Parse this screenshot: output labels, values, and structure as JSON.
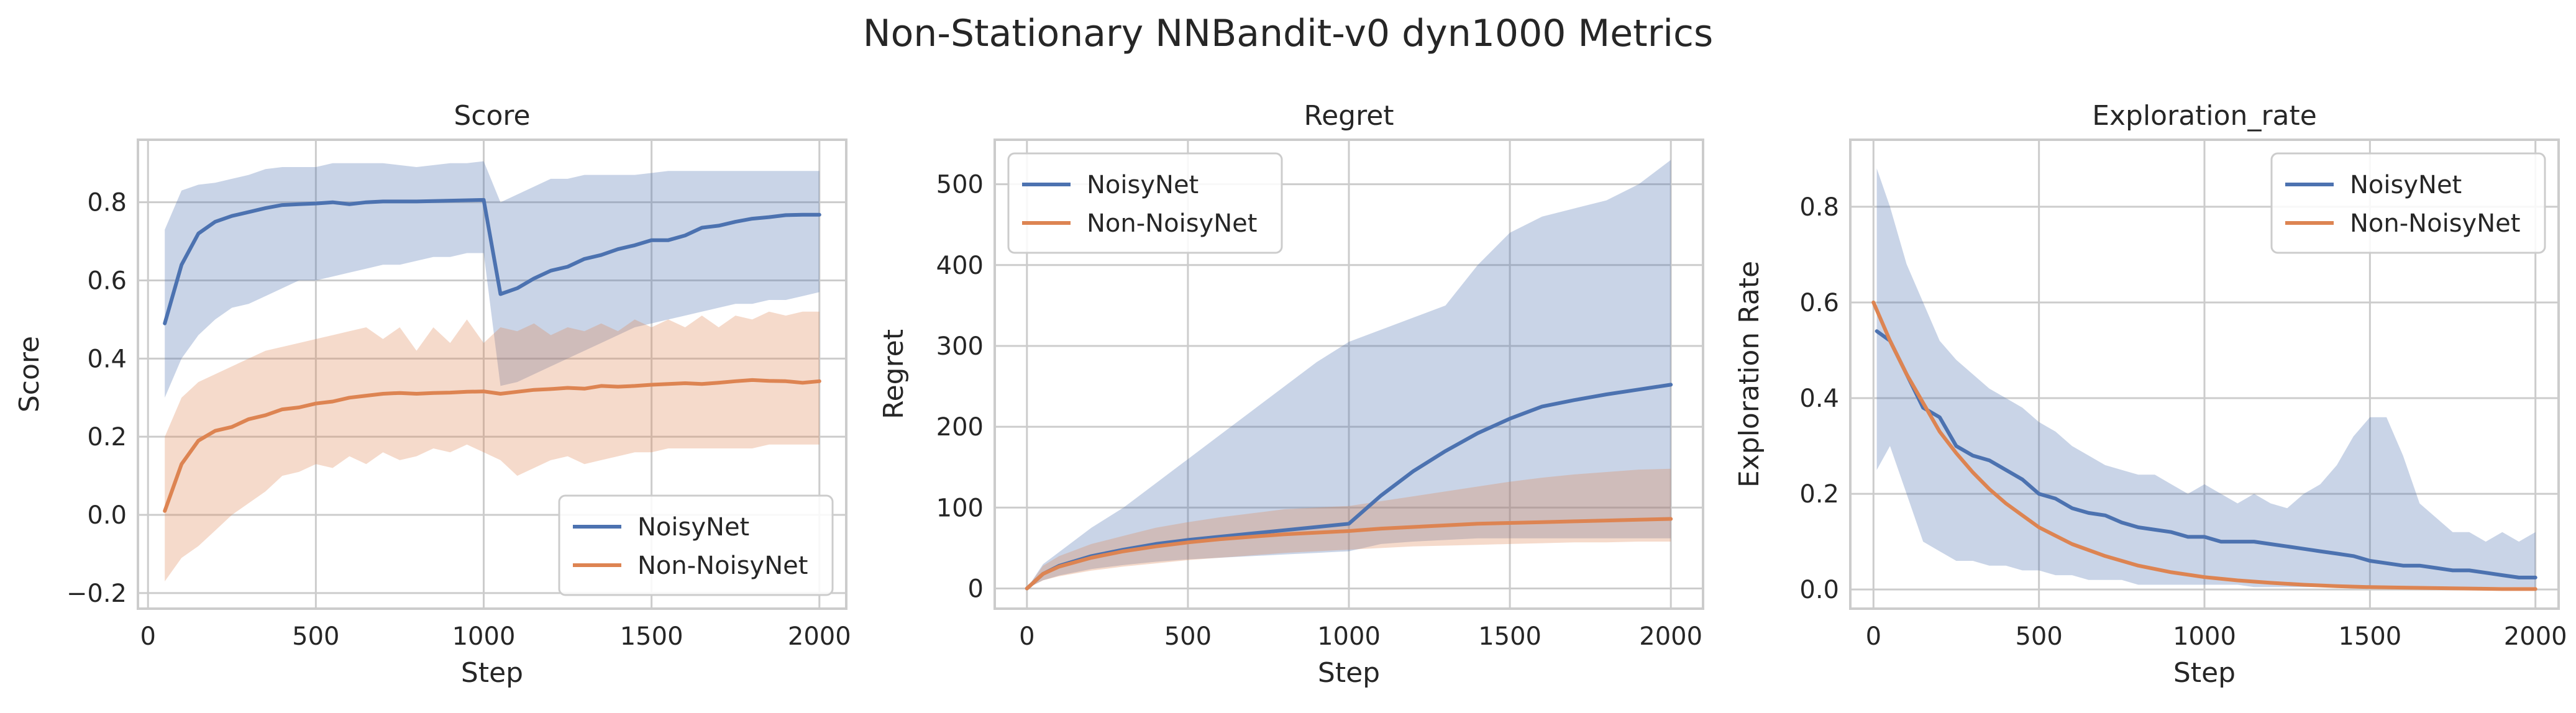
{
  "figure": {
    "suptitle": "Non-Stationary NNBandit-v0 dyn1000 Metrics"
  },
  "colors": {
    "noisy": "#4c72b0",
    "nonnoisy": "#dd8452",
    "grid": "#cccccc",
    "frame": "#cccccc",
    "text": "#262626"
  },
  "chart_data": [
    {
      "type": "line",
      "title": "Score",
      "xlabel": "Step",
      "ylabel": "Score",
      "xlim": [
        -30,
        2080
      ],
      "ylim": [
        -0.24,
        0.96
      ],
      "xticks": [
        0,
        500,
        1000,
        1500,
        2000
      ],
      "yticks": [
        -0.2,
        0.0,
        0.2,
        0.4,
        0.6,
        0.8
      ],
      "ytick_labels": [
        "−0.2",
        "0.0",
        "0.2",
        "0.4",
        "0.6",
        "0.8"
      ],
      "grid": true,
      "legend": "lower right",
      "series": [
        {
          "name": "NoisyNet",
          "x": [
            50,
            100,
            150,
            200,
            250,
            300,
            350,
            400,
            450,
            500,
            550,
            600,
            650,
            700,
            750,
            800,
            850,
            900,
            950,
            1000,
            1050,
            1100,
            1150,
            1200,
            1250,
            1300,
            1350,
            1400,
            1450,
            1500,
            1550,
            1600,
            1650,
            1700,
            1750,
            1800,
            1850,
            1900,
            1950,
            2000
          ],
          "y": [
            0.49,
            0.64,
            0.72,
            0.75,
            0.765,
            0.775,
            0.785,
            0.793,
            0.795,
            0.797,
            0.8,
            0.795,
            0.8,
            0.802,
            0.802,
            0.802,
            0.803,
            0.804,
            0.805,
            0.806,
            0.565,
            0.58,
            0.605,
            0.625,
            0.635,
            0.655,
            0.665,
            0.68,
            0.69,
            0.703,
            0.703,
            0.715,
            0.735,
            0.74,
            0.75,
            0.758,
            0.762,
            0.767,
            0.768,
            0.768
          ],
          "lower": [
            0.3,
            0.4,
            0.46,
            0.5,
            0.53,
            0.54,
            0.56,
            0.58,
            0.6,
            0.6,
            0.61,
            0.62,
            0.63,
            0.64,
            0.64,
            0.65,
            0.66,
            0.66,
            0.67,
            0.67,
            0.33,
            0.34,
            0.36,
            0.38,
            0.4,
            0.42,
            0.44,
            0.46,
            0.48,
            0.49,
            0.5,
            0.51,
            0.52,
            0.53,
            0.54,
            0.54,
            0.55,
            0.55,
            0.56,
            0.57
          ],
          "upper": [
            0.73,
            0.83,
            0.845,
            0.85,
            0.86,
            0.87,
            0.885,
            0.89,
            0.89,
            0.89,
            0.9,
            0.9,
            0.9,
            0.9,
            0.895,
            0.89,
            0.895,
            0.9,
            0.9,
            0.905,
            0.8,
            0.82,
            0.84,
            0.86,
            0.86,
            0.87,
            0.87,
            0.87,
            0.87,
            0.875,
            0.88,
            0.88,
            0.88,
            0.88,
            0.88,
            0.88,
            0.88,
            0.88,
            0.88,
            0.88
          ]
        },
        {
          "name": "Non-NoisyNet",
          "x": [
            50,
            100,
            150,
            200,
            250,
            300,
            350,
            400,
            450,
            500,
            550,
            600,
            650,
            700,
            750,
            800,
            850,
            900,
            950,
            1000,
            1050,
            1100,
            1150,
            1200,
            1250,
            1300,
            1350,
            1400,
            1450,
            1500,
            1550,
            1600,
            1650,
            1700,
            1750,
            1800,
            1850,
            1900,
            1950,
            2000
          ],
          "y": [
            0.01,
            0.13,
            0.19,
            0.215,
            0.225,
            0.245,
            0.255,
            0.27,
            0.275,
            0.285,
            0.29,
            0.3,
            0.305,
            0.31,
            0.312,
            0.31,
            0.312,
            0.313,
            0.315,
            0.316,
            0.31,
            0.315,
            0.32,
            0.322,
            0.325,
            0.323,
            0.33,
            0.328,
            0.33,
            0.333,
            0.335,
            0.337,
            0.335,
            0.338,
            0.342,
            0.345,
            0.343,
            0.342,
            0.338,
            0.342
          ],
          "lower": [
            -0.17,
            -0.11,
            -0.08,
            -0.04,
            0.0,
            0.03,
            0.06,
            0.1,
            0.11,
            0.13,
            0.12,
            0.15,
            0.13,
            0.16,
            0.14,
            0.15,
            0.17,
            0.16,
            0.18,
            0.16,
            0.14,
            0.1,
            0.12,
            0.14,
            0.15,
            0.13,
            0.14,
            0.15,
            0.16,
            0.16,
            0.17,
            0.17,
            0.17,
            0.17,
            0.17,
            0.17,
            0.18,
            0.18,
            0.18,
            0.18
          ],
          "upper": [
            0.2,
            0.3,
            0.34,
            0.36,
            0.38,
            0.4,
            0.42,
            0.43,
            0.44,
            0.45,
            0.46,
            0.47,
            0.48,
            0.45,
            0.48,
            0.42,
            0.48,
            0.44,
            0.5,
            0.44,
            0.48,
            0.47,
            0.49,
            0.46,
            0.48,
            0.47,
            0.49,
            0.47,
            0.5,
            0.48,
            0.5,
            0.48,
            0.51,
            0.48,
            0.51,
            0.5,
            0.52,
            0.51,
            0.52,
            0.52
          ]
        }
      ]
    },
    {
      "type": "line",
      "title": "Regret",
      "xlabel": "Step",
      "ylabel": "Regret",
      "xlim": [
        -100,
        2100
      ],
      "ylim": [
        -25,
        555
      ],
      "xticks": [
        0,
        500,
        1000,
        1500,
        2000
      ],
      "yticks": [
        0,
        100,
        200,
        300,
        400,
        500
      ],
      "ytick_labels": [
        "0",
        "100",
        "200",
        "300",
        "400",
        "500"
      ],
      "grid": true,
      "legend": "upper left",
      "series": [
        {
          "name": "NoisyNet",
          "x": [
            0,
            50,
            100,
            200,
            300,
            400,
            500,
            600,
            700,
            800,
            900,
            1000,
            1100,
            1200,
            1300,
            1400,
            1500,
            1600,
            1700,
            1800,
            1900,
            2000
          ],
          "y": [
            0,
            18,
            28,
            40,
            48,
            55,
            60,
            64,
            68,
            72,
            76,
            80,
            115,
            145,
            170,
            192,
            210,
            225,
            233,
            240,
            246,
            252
          ],
          "lower": [
            0,
            10,
            16,
            24,
            29,
            33,
            36,
            38,
            40,
            42,
            44,
            46,
            55,
            58,
            60,
            62,
            62,
            62,
            62,
            62,
            62,
            62
          ],
          "upper": [
            0,
            30,
            45,
            75,
            100,
            130,
            160,
            190,
            220,
            250,
            280,
            305,
            320,
            335,
            350,
            400,
            440,
            460,
            470,
            480,
            500,
            530
          ]
        },
        {
          "name": "Non-NoisyNet",
          "x": [
            0,
            50,
            100,
            200,
            300,
            400,
            500,
            600,
            700,
            800,
            900,
            1000,
            1100,
            1200,
            1300,
            1400,
            1500,
            1600,
            1700,
            1800,
            1900,
            2000
          ],
          "y": [
            0,
            18,
            27,
            38,
            46,
            52,
            57,
            61,
            64,
            67,
            69,
            71,
            74,
            76,
            78,
            80,
            81,
            82,
            83,
            84,
            85,
            86
          ],
          "lower": [
            0,
            10,
            15,
            22,
            27,
            31,
            35,
            38,
            41,
            44,
            46,
            48,
            50,
            52,
            53,
            54,
            55,
            56,
            57,
            57,
            58,
            58
          ],
          "upper": [
            0,
            28,
            40,
            55,
            65,
            75,
            82,
            88,
            93,
            98,
            100,
            102,
            108,
            114,
            120,
            126,
            132,
            137,
            141,
            144,
            147,
            148
          ]
        }
      ]
    },
    {
      "type": "line",
      "title": "Exploration_rate",
      "xlabel": "Step",
      "ylabel": "Exploration Rate",
      "xlim": [
        -70,
        2070
      ],
      "ylim": [
        -0.04,
        0.94
      ],
      "xticks": [
        0,
        500,
        1000,
        1500,
        2000
      ],
      "yticks": [
        0.0,
        0.2,
        0.4,
        0.6,
        0.8
      ],
      "ytick_labels": [
        "0.0",
        "0.2",
        "0.4",
        "0.6",
        "0.8"
      ],
      "grid": true,
      "legend": "upper right",
      "series": [
        {
          "name": "NoisyNet",
          "x": [
            10,
            50,
            100,
            150,
            200,
            250,
            300,
            350,
            400,
            450,
            500,
            550,
            600,
            650,
            700,
            750,
            800,
            850,
            900,
            950,
            1000,
            1050,
            1100,
            1150,
            1200,
            1250,
            1300,
            1350,
            1400,
            1450,
            1500,
            1550,
            1600,
            1650,
            1700,
            1750,
            1800,
            1850,
            1900,
            1950,
            2000
          ],
          "y": [
            0.54,
            0.52,
            0.45,
            0.38,
            0.36,
            0.3,
            0.28,
            0.27,
            0.25,
            0.23,
            0.2,
            0.19,
            0.17,
            0.16,
            0.155,
            0.14,
            0.13,
            0.125,
            0.12,
            0.11,
            0.11,
            0.1,
            0.1,
            0.1,
            0.095,
            0.09,
            0.085,
            0.08,
            0.075,
            0.07,
            0.06,
            0.055,
            0.05,
            0.05,
            0.045,
            0.04,
            0.04,
            0.035,
            0.03,
            0.025,
            0.025
          ],
          "lower": [
            0.25,
            0.3,
            0.2,
            0.1,
            0.08,
            0.06,
            0.06,
            0.05,
            0.05,
            0.04,
            0.04,
            0.03,
            0.03,
            0.02,
            0.02,
            0.02,
            0.01,
            0.01,
            0.01,
            0.01,
            0.01,
            0.01,
            0.01,
            0.005,
            0.005,
            0.005,
            0.005,
            0.005,
            0.005,
            0.005,
            0.005,
            0.005,
            0.005,
            0.005,
            0.005,
            0.005,
            0.005,
            0.005,
            0.005,
            0.005,
            0.005
          ],
          "upper": [
            0.88,
            0.8,
            0.68,
            0.6,
            0.52,
            0.48,
            0.45,
            0.42,
            0.4,
            0.38,
            0.35,
            0.33,
            0.3,
            0.28,
            0.26,
            0.25,
            0.24,
            0.24,
            0.22,
            0.2,
            0.22,
            0.2,
            0.18,
            0.2,
            0.18,
            0.17,
            0.2,
            0.22,
            0.26,
            0.32,
            0.36,
            0.36,
            0.28,
            0.18,
            0.15,
            0.12,
            0.12,
            0.1,
            0.12,
            0.1,
            0.12
          ]
        },
        {
          "name": "Non-NoisyNet",
          "x": [
            0,
            50,
            100,
            150,
            200,
            250,
            300,
            350,
            400,
            450,
            500,
            600,
            700,
            800,
            900,
            1000,
            1100,
            1200,
            1300,
            1400,
            1500,
            1600,
            1700,
            1800,
            1900,
            2000
          ],
          "y": [
            0.6,
            0.52,
            0.45,
            0.39,
            0.33,
            0.285,
            0.245,
            0.21,
            0.18,
            0.155,
            0.13,
            0.095,
            0.07,
            0.05,
            0.036,
            0.026,
            0.019,
            0.014,
            0.01,
            0.007,
            0.005,
            0.004,
            0.003,
            0.002,
            0.001,
            0.001
          ],
          "lower": [],
          "upper": []
        }
      ]
    }
  ]
}
